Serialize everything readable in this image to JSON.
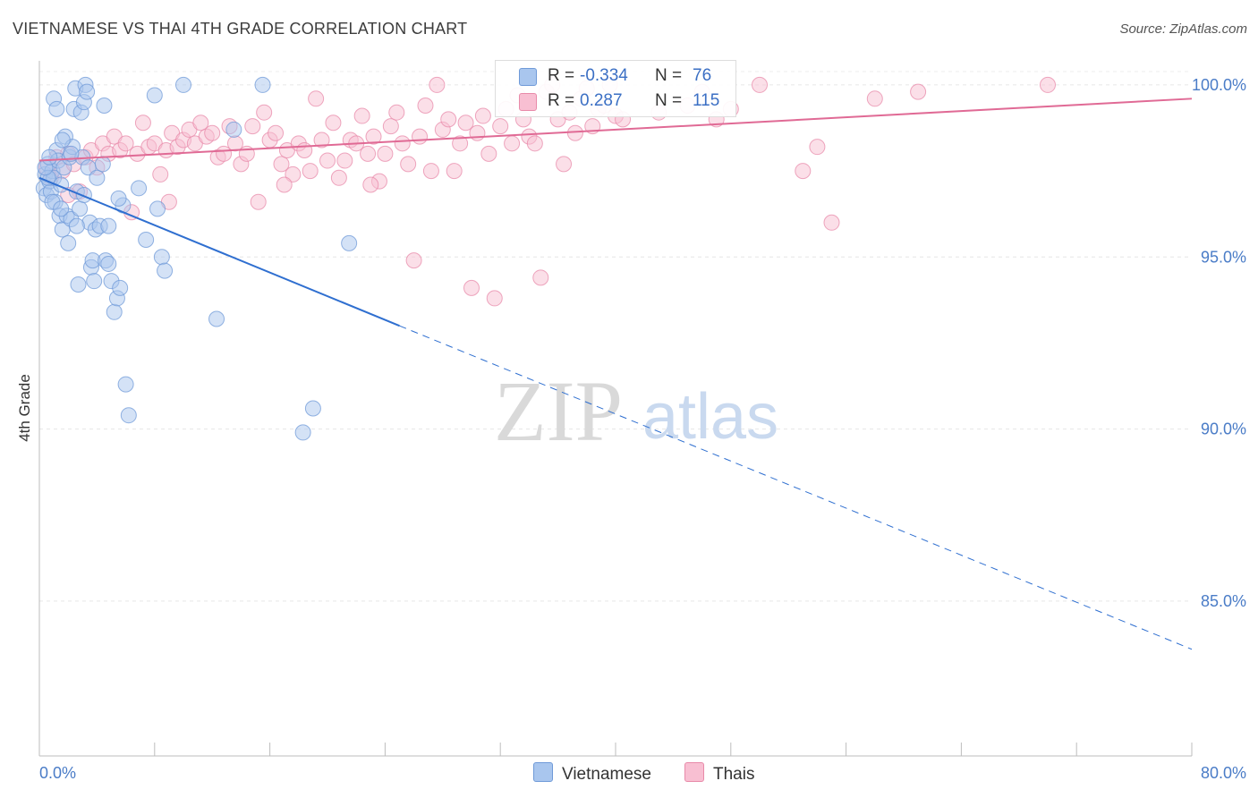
{
  "header": {
    "title": "VIETNAMESE VS THAI 4TH GRADE CORRELATION CHART",
    "source": "Source: ZipAtlas.com"
  },
  "watermark": {
    "zip": "ZIP",
    "atlas": "atlas"
  },
  "legend": {
    "rows": [
      {
        "r_label": "R =",
        "r_value": "-0.334",
        "n_label": "N =",
        "n_value": "76",
        "color": "#a9c6ee",
        "border": "#6f9ad8"
      },
      {
        "r_label": "R =",
        "r_value": "0.287",
        "n_label": "N =",
        "n_value": "115",
        "color": "#f8bfd2",
        "border": "#e88aa9"
      }
    ]
  },
  "chart_data": {
    "type": "scatter",
    "title": "VIETNAMESE VS THAI 4TH GRADE CORRELATION CHART",
    "xlabel": "",
    "ylabel": "4th Grade",
    "xlim": [
      0,
      80
    ],
    "ylim": [
      80.5,
      100.7
    ],
    "x_tick_labels": [
      "0.0%",
      "80.0%"
    ],
    "y_ticks": [
      85,
      90,
      95,
      100
    ],
    "y_tick_labels": [
      "85.0%",
      "90.0%",
      "95.0%",
      "100.0%"
    ],
    "grid": true,
    "legend_position": "top-center",
    "series": [
      {
        "name": "Vietnamese",
        "color": "#6f9ad8",
        "fill": "#a9c6ee",
        "trend": {
          "x0": 0,
          "y0": 97.3,
          "x1": 25,
          "y1": 93.0,
          "x_end": 80,
          "y_end": 83.6
        },
        "points": [
          [
            0.3,
            97.0
          ],
          [
            0.4,
            97.4
          ],
          [
            0.5,
            96.8
          ],
          [
            0.6,
            97.7
          ],
          [
            0.7,
            97.2
          ],
          [
            0.8,
            96.9
          ],
          [
            0.9,
            97.5
          ],
          [
            1.0,
            97.3
          ],
          [
            1.1,
            96.6
          ],
          [
            1.2,
            98.1
          ],
          [
            1.3,
            97.8
          ],
          [
            1.4,
            96.2
          ],
          [
            1.5,
            97.1
          ],
          [
            1.6,
            95.8
          ],
          [
            1.7,
            97.6
          ],
          [
            1.8,
            98.5
          ],
          [
            1.9,
            96.2
          ],
          [
            2.0,
            95.4
          ],
          [
            2.1,
            97.9
          ],
          [
            2.2,
            96.1
          ],
          [
            2.3,
            98.2
          ],
          [
            2.4,
            99.3
          ],
          [
            2.5,
            99.9
          ],
          [
            2.6,
            96.9
          ],
          [
            2.7,
            94.2
          ],
          [
            2.8,
            96.4
          ],
          [
            2.9,
            99.2
          ],
          [
            3.0,
            97.9
          ],
          [
            3.1,
            99.5
          ],
          [
            3.2,
            100.0
          ],
          [
            3.3,
            99.8
          ],
          [
            3.4,
            97.6
          ],
          [
            3.5,
            96.0
          ],
          [
            3.6,
            94.7
          ],
          [
            3.7,
            94.9
          ],
          [
            3.8,
            94.3
          ],
          [
            3.9,
            95.8
          ],
          [
            4.0,
            97.3
          ],
          [
            4.2,
            95.9
          ],
          [
            4.4,
            97.7
          ],
          [
            4.5,
            99.4
          ],
          [
            4.6,
            94.9
          ],
          [
            4.8,
            95.9
          ],
          [
            5.0,
            94.3
          ],
          [
            5.2,
            93.4
          ],
          [
            5.4,
            93.8
          ],
          [
            5.6,
            94.1
          ],
          [
            5.8,
            96.5
          ],
          [
            6.0,
            91.3
          ],
          [
            6.2,
            90.4
          ],
          [
            8.2,
            96.4
          ],
          [
            8.5,
            95.0
          ],
          [
            8.7,
            94.6
          ],
          [
            8.0,
            99.7
          ],
          [
            10.0,
            100.0
          ],
          [
            12.3,
            93.2
          ],
          [
            18.3,
            89.9
          ],
          [
            19.0,
            90.6
          ],
          [
            21.5,
            95.4
          ],
          [
            15.5,
            100.0
          ],
          [
            5.5,
            96.7
          ],
          [
            6.9,
            97.0
          ],
          [
            1.0,
            99.6
          ],
          [
            1.6,
            98.4
          ],
          [
            0.6,
            97.3
          ],
          [
            0.9,
            96.6
          ],
          [
            1.2,
            99.3
          ],
          [
            2.2,
            98.0
          ],
          [
            3.1,
            96.8
          ],
          [
            4.8,
            94.8
          ],
          [
            7.4,
            95.5
          ],
          [
            13.5,
            98.7
          ],
          [
            0.4,
            97.6
          ],
          [
            0.7,
            97.9
          ],
          [
            1.5,
            96.4
          ],
          [
            2.6,
            95.9
          ]
        ]
      },
      {
        "name": "Thais",
        "color": "#e88aa9",
        "fill": "#f8bfd2",
        "trend": {
          "x0": 0,
          "y0": 97.8,
          "x1": 80,
          "y1": 99.6
        },
        "points": [
          [
            0.5,
            97.6
          ],
          [
            0.8,
            97.3
          ],
          [
            1.2,
            97.9
          ],
          [
            1.6,
            97.5
          ],
          [
            2.0,
            98.0
          ],
          [
            2.4,
            97.7
          ],
          [
            2.8,
            96.9
          ],
          [
            3.2,
            97.9
          ],
          [
            3.6,
            98.1
          ],
          [
            4.0,
            97.6
          ],
          [
            4.4,
            98.3
          ],
          [
            4.8,
            98.0
          ],
          [
            5.2,
            98.5
          ],
          [
            5.6,
            98.1
          ],
          [
            6.0,
            98.3
          ],
          [
            6.4,
            96.3
          ],
          [
            6.8,
            98.0
          ],
          [
            7.2,
            98.9
          ],
          [
            7.6,
            98.2
          ],
          [
            8.0,
            98.3
          ],
          [
            8.4,
            97.4
          ],
          [
            8.8,
            98.1
          ],
          [
            9.2,
            98.6
          ],
          [
            9.6,
            98.2
          ],
          [
            10.0,
            98.4
          ],
          [
            10.4,
            98.7
          ],
          [
            10.8,
            98.3
          ],
          [
            11.2,
            98.9
          ],
          [
            11.6,
            98.5
          ],
          [
            12.0,
            98.6
          ],
          [
            12.4,
            97.9
          ],
          [
            12.8,
            98.0
          ],
          [
            13.2,
            98.8
          ],
          [
            13.6,
            98.3
          ],
          [
            14.0,
            97.7
          ],
          [
            14.4,
            98.0
          ],
          [
            14.8,
            98.8
          ],
          [
            15.2,
            96.6
          ],
          [
            15.6,
            99.2
          ],
          [
            16.0,
            98.4
          ],
          [
            16.4,
            98.6
          ],
          [
            16.8,
            97.7
          ],
          [
            17.2,
            98.1
          ],
          [
            17.6,
            97.4
          ],
          [
            18.0,
            98.3
          ],
          [
            18.4,
            98.1
          ],
          [
            18.8,
            97.5
          ],
          [
            19.2,
            99.6
          ],
          [
            19.6,
            98.4
          ],
          [
            20.0,
            97.8
          ],
          [
            20.4,
            98.9
          ],
          [
            20.8,
            97.3
          ],
          [
            21.2,
            97.8
          ],
          [
            21.6,
            98.4
          ],
          [
            22.0,
            98.3
          ],
          [
            22.4,
            99.1
          ],
          [
            22.8,
            98.0
          ],
          [
            23.2,
            98.5
          ],
          [
            23.6,
            97.2
          ],
          [
            24.0,
            98.0
          ],
          [
            24.4,
            98.8
          ],
          [
            24.8,
            99.2
          ],
          [
            25.2,
            98.3
          ],
          [
            25.6,
            97.7
          ],
          [
            26.0,
            94.9
          ],
          [
            26.4,
            98.5
          ],
          [
            26.8,
            99.4
          ],
          [
            27.2,
            97.5
          ],
          [
            27.6,
            100.0
          ],
          [
            28.0,
            98.7
          ],
          [
            28.4,
            99.0
          ],
          [
            28.8,
            97.5
          ],
          [
            29.2,
            98.3
          ],
          [
            29.6,
            98.9
          ],
          [
            30.0,
            94.1
          ],
          [
            30.4,
            98.6
          ],
          [
            30.8,
            99.1
          ],
          [
            31.2,
            98.0
          ],
          [
            31.6,
            93.8
          ],
          [
            32.0,
            98.8
          ],
          [
            32.4,
            99.3
          ],
          [
            32.8,
            98.3
          ],
          [
            33.2,
            99.7
          ],
          [
            33.6,
            99.0
          ],
          [
            34.0,
            98.5
          ],
          [
            34.4,
            98.3
          ],
          [
            34.8,
            94.4
          ],
          [
            35.2,
            99.8
          ],
          [
            35.6,
            100.0
          ],
          [
            36.0,
            99.0
          ],
          [
            36.4,
            97.7
          ],
          [
            36.8,
            99.2
          ],
          [
            37.2,
            98.6
          ],
          [
            37.6,
            99.6
          ],
          [
            38.0,
            99.9
          ],
          [
            38.4,
            98.8
          ],
          [
            38.8,
            99.3
          ],
          [
            39.2,
            99.4
          ],
          [
            39.6,
            100.0
          ],
          [
            40.0,
            99.1
          ],
          [
            43.0,
            99.2
          ],
          [
            45.0,
            99.4
          ],
          [
            46.0,
            99.8
          ],
          [
            47.0,
            99.0
          ],
          [
            48.0,
            99.3
          ],
          [
            50.0,
            100.0
          ],
          [
            53.0,
            97.5
          ],
          [
            54.0,
            98.2
          ],
          [
            55.0,
            96.0
          ],
          [
            58.0,
            99.6
          ],
          [
            61.0,
            99.8
          ],
          [
            70.0,
            100.0
          ],
          [
            2.0,
            96.8
          ],
          [
            9.0,
            96.6
          ],
          [
            17.0,
            97.1
          ],
          [
            23.0,
            97.1
          ],
          [
            40.5,
            99.0
          ]
        ]
      }
    ]
  },
  "bottom_legend": {
    "items": [
      {
        "label": "Vietnamese",
        "color": "#a9c6ee",
        "border": "#6f9ad8"
      },
      {
        "label": "Thais",
        "color": "#f8bfd2",
        "border": "#e88aa9"
      }
    ]
  }
}
